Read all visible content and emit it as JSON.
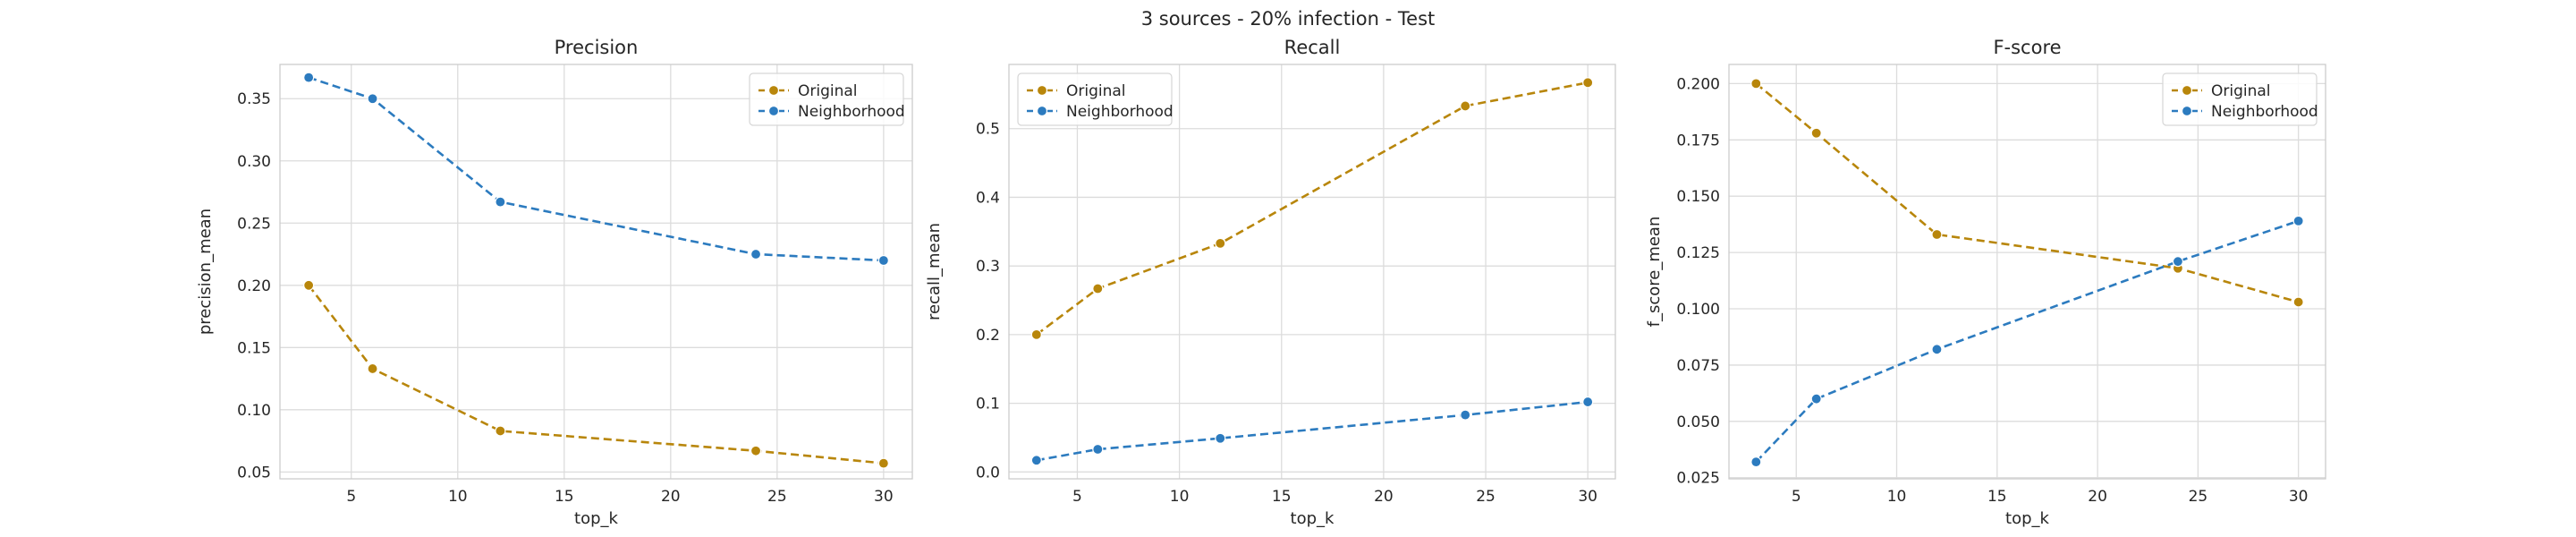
{
  "figure": {
    "suptitle": "3 sources - 20% infection - Test"
  },
  "colors": {
    "original": "#b8860b",
    "neighborhood": "#2c7bbf",
    "grid": "#dcdcdc",
    "spine": "#cccccc",
    "text": "#262626"
  },
  "chart_data": [
    {
      "type": "line",
      "title": "Precision",
      "xlabel": "top_k",
      "ylabel": "precision_mean",
      "x": [
        3,
        6,
        12,
        24,
        30
      ],
      "xlim": [
        1.65,
        31.35
      ],
      "ylim": [
        0.0445,
        0.3775
      ],
      "xticks": [
        5,
        10,
        15,
        20,
        25,
        30
      ],
      "yticks": [
        0.05,
        0.1,
        0.15,
        0.2,
        0.25,
        0.3,
        0.35
      ],
      "ytick_labels": [
        "0.05",
        "0.10",
        "0.15",
        "0.20",
        "0.25",
        "0.30",
        "0.35"
      ],
      "legend_loc": "upper right",
      "series": [
        {
          "name": "Original",
          "color_key": "original",
          "values": [
            0.2,
            0.133,
            0.083,
            0.067,
            0.057
          ]
        },
        {
          "name": "Neighborhood",
          "color_key": "neighborhood",
          "values": [
            0.367,
            0.35,
            0.267,
            0.225,
            0.22
          ]
        }
      ]
    },
    {
      "type": "line",
      "title": "Recall",
      "xlabel": "top_k",
      "ylabel": "recall_mean",
      "x": [
        3,
        6,
        12,
        24,
        30
      ],
      "xlim": [
        1.65,
        31.35
      ],
      "ylim": [
        -0.01,
        0.5935
      ],
      "xticks": [
        5,
        10,
        15,
        20,
        25,
        30
      ],
      "yticks": [
        0.0,
        0.1,
        0.2,
        0.3,
        0.4,
        0.5
      ],
      "ytick_labels": [
        "0.0",
        "0.1",
        "0.2",
        "0.3",
        "0.4",
        "0.5"
      ],
      "legend_loc": "upper left",
      "series": [
        {
          "name": "Original",
          "color_key": "original",
          "values": [
            0.2,
            0.267,
            0.333,
            0.533,
            0.567
          ]
        },
        {
          "name": "Neighborhood",
          "color_key": "neighborhood",
          "values": [
            0.017,
            0.033,
            0.049,
            0.083,
            0.102
          ]
        }
      ]
    },
    {
      "type": "line",
      "title": "F-score",
      "xlabel": "top_k",
      "ylabel": "f_score_mean",
      "x": [
        3,
        6,
        12,
        24,
        30
      ],
      "xlim": [
        1.65,
        31.35
      ],
      "ylim": [
        0.0245,
        0.2085
      ],
      "xticks": [
        5,
        10,
        15,
        20,
        25,
        30
      ],
      "yticks": [
        0.025,
        0.05,
        0.075,
        0.1,
        0.125,
        0.15,
        0.175,
        0.2
      ],
      "ytick_labels": [
        "0.025",
        "0.050",
        "0.075",
        "0.100",
        "0.125",
        "0.150",
        "0.175",
        "0.200"
      ],
      "legend_loc": "upper right",
      "series": [
        {
          "name": "Original",
          "color_key": "original",
          "values": [
            0.2,
            0.178,
            0.133,
            0.118,
            0.103
          ]
        },
        {
          "name": "Neighborhood",
          "color_key": "neighborhood",
          "values": [
            0.032,
            0.06,
            0.082,
            0.121,
            0.139
          ]
        }
      ]
    }
  ]
}
